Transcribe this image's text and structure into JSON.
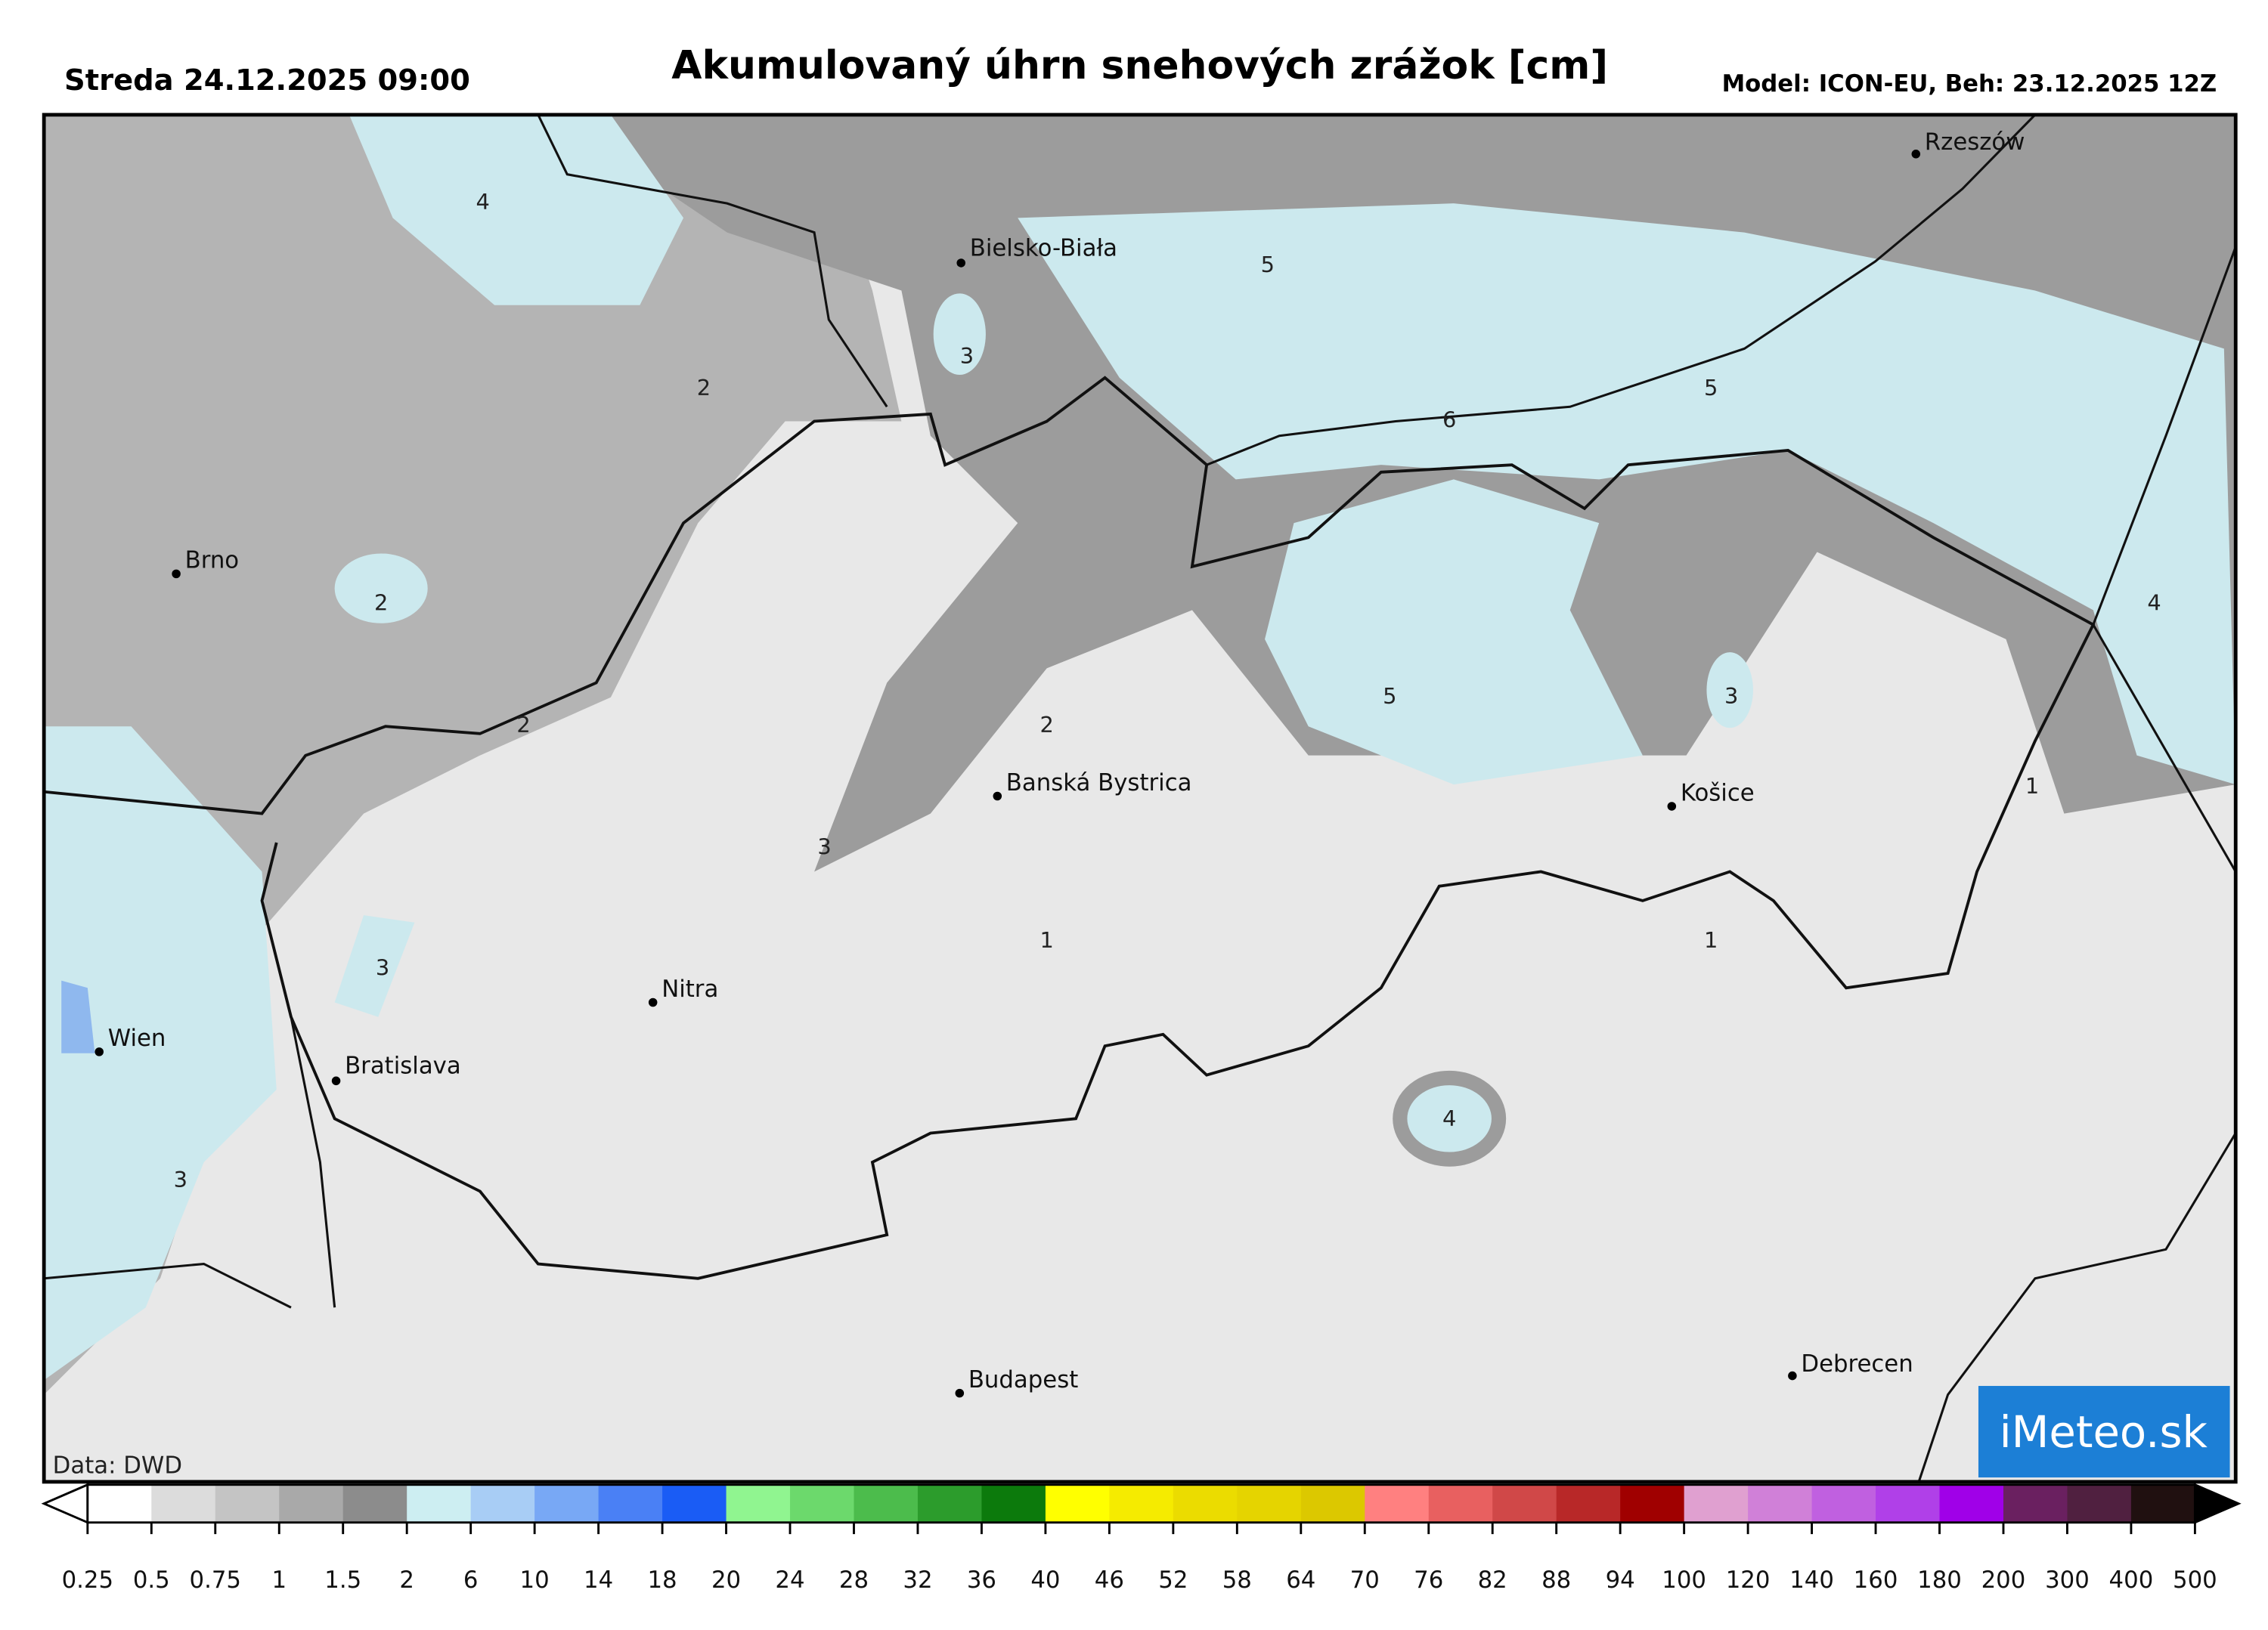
{
  "header": {
    "date": "Streda 24.12.2025 09:00",
    "title": "Akumulovaný úhrn snehových zrážok [cm]",
    "model": "Model: ICON-EU, Beh: 23.12.2025 12Z"
  },
  "map": {
    "cities": [
      "Rzeszów",
      "Bielsko-Biała",
      "Brno",
      "Banská Bystrica",
      "Košice",
      "Nitra",
      "Wien",
      "Bratislava",
      "Budapest",
      "Debrecen"
    ],
    "contour_labels": [
      4,
      5,
      3,
      2,
      6,
      5,
      2,
      4,
      3,
      5,
      2,
      2,
      1,
      3,
      1,
      1,
      3,
      3,
      4
    ],
    "source": "Data: DWD",
    "logo": "iMeteo.sk"
  },
  "legend": {
    "ticks": [
      0.25,
      0.5,
      0.75,
      1,
      1.5,
      2,
      6,
      10,
      14,
      18,
      20,
      24,
      28,
      32,
      36,
      40,
      46,
      52,
      58,
      64,
      70,
      76,
      82,
      88,
      94,
      100,
      120,
      140,
      160,
      180,
      200,
      300,
      400,
      500
    ],
    "colors": [
      "#ffffff",
      "#dcdcdc",
      "#c4c4c4",
      "#a9a9a9",
      "#8c8c8c",
      "#cdeef2",
      "#a8cdf5",
      "#78a8f5",
      "#4a80f5",
      "#1a5cf5",
      "#90f590",
      "#6cd96c",
      "#4cbc4c",
      "#2c9c2c",
      "#0c7a0c",
      "#ffff00",
      "#f5eb00",
      "#ebdc00",
      "#e5d400",
      "#dcc800",
      "#ff8080",
      "#e86060",
      "#d04848",
      "#b82828",
      "#a00000",
      "#e0a0d0",
      "#d080d8",
      "#c060e0",
      "#b040e8",
      "#a000e8",
      "#6a2060",
      "#502040",
      "#201010"
    ],
    "under_color": "#ffffff",
    "over_color": "#000000"
  }
}
